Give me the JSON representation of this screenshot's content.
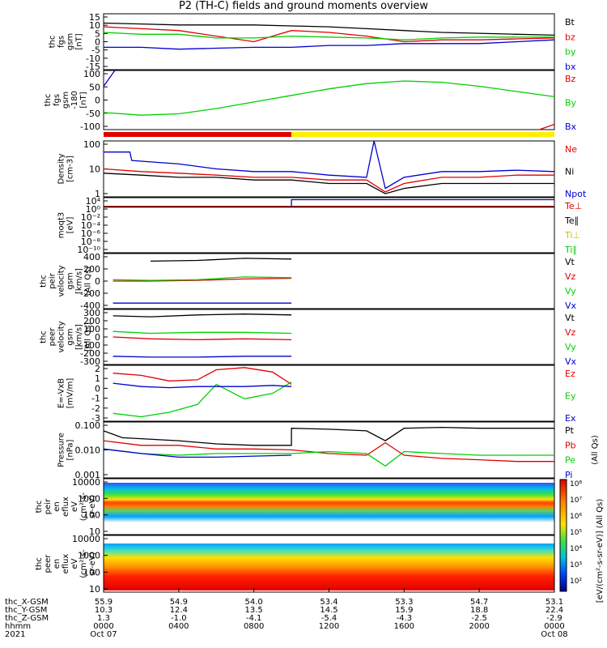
{
  "title": "P2 (TH-C) fields and ground moments overview",
  "colors": {
    "black": "#000000",
    "red": "#e00000",
    "green": "#00d000",
    "blue": "#0000d0",
    "yellow": "#ffee00"
  },
  "chart_data": [
    {
      "id": "fgs",
      "type": "line",
      "ylabel": [
        "thc",
        "fgs",
        "gsm",
        "[nT]"
      ],
      "ylim": [
        -15,
        15
      ],
      "yticks": [
        "15",
        "10",
        "5",
        "0",
        "-5",
        "-10",
        "-15"
      ],
      "legend": [
        {
          "label": "Bt",
          "color": "black"
        },
        {
          "label": "bz",
          "color": "red"
        },
        {
          "label": "by",
          "color": "green"
        },
        {
          "label": "bx",
          "color": "blue"
        }
      ],
      "series": [
        {
          "color": "black",
          "x": [
            0,
            2,
            4,
            6,
            8,
            10,
            12,
            14,
            16,
            18,
            20,
            22,
            24
          ],
          "y": [
            10,
            9.5,
            9,
            9,
            9,
            8.5,
            8,
            7,
            6,
            5,
            4.5,
            4,
            3.5
          ]
        },
        {
          "color": "red",
          "x": [
            0,
            2,
            4,
            6,
            8,
            10,
            12,
            14,
            16,
            18,
            20,
            22,
            24
          ],
          "y": [
            8,
            7,
            6,
            3,
            0,
            6,
            5,
            3,
            0,
            1,
            1,
            1.5,
            2
          ]
        },
        {
          "color": "green",
          "x": [
            0,
            2,
            4,
            6,
            8,
            10,
            12,
            14,
            16,
            18,
            20,
            22,
            24
          ],
          "y": [
            5,
            4,
            4,
            2,
            2,
            3,
            2.5,
            2,
            1,
            2,
            2.5,
            2.5,
            2.5
          ]
        },
        {
          "color": "blue",
          "x": [
            0,
            2,
            4,
            6,
            8,
            10,
            12,
            14,
            16,
            18,
            20,
            22,
            24
          ],
          "y": [
            -3,
            -3,
            -4,
            -3.5,
            -3,
            -3,
            -2,
            -2,
            -1,
            -1,
            -1,
            0,
            1
          ]
        }
      ]
    },
    {
      "id": "fgs_n",
      "type": "line",
      "ylabel": [
        "thc",
        "fgs",
        "gsm",
        "-180",
        "[nT]"
      ],
      "ylim": [
        -125,
        100
      ],
      "yticks": [
        "100",
        "50",
        "0",
        "-50",
        "-100"
      ],
      "legend": [
        {
          "label": "Bz",
          "color": "red"
        },
        {
          "label": "By",
          "color": "green"
        },
        {
          "label": "Bx",
          "color": "blue"
        }
      ],
      "series": [
        {
          "color": "green",
          "x": [
            0,
            2,
            4,
            6,
            8,
            10,
            12,
            14,
            16,
            18,
            20,
            22,
            24
          ],
          "y": [
            -60,
            -70,
            -65,
            -45,
            -20,
            5,
            30,
            50,
            60,
            55,
            40,
            20,
            0
          ]
        },
        {
          "color": "blue",
          "x": [
            0,
            0.6
          ],
          "y": [
            40,
            100
          ]
        },
        {
          "color": "red",
          "x": [
            23.2,
            24
          ],
          "y": [
            -125,
            -105
          ]
        }
      ]
    },
    {
      "id": "density",
      "type": "line",
      "scale": "log",
      "ylabel": [
        "Density",
        "[cm-3]"
      ],
      "ylim": [
        1,
        100
      ],
      "yticks": [
        "100",
        "10",
        "1"
      ],
      "legend": [
        {
          "label": "Ne",
          "color": "red"
        },
        {
          "label": "Ni",
          "color": "black"
        },
        {
          "label": "Npot",
          "color": "blue"
        }
      ],
      "series": [
        {
          "color": "blue",
          "x": [
            0,
            1.4,
            1.5,
            4,
            6,
            8,
            10,
            12,
            14,
            14.4,
            15,
            16,
            18,
            20,
            22,
            24
          ],
          "y": [
            40,
            40,
            20,
            15,
            10,
            8,
            8,
            6,
            5,
            100,
            2,
            5,
            8,
            8,
            9,
            8
          ]
        },
        {
          "color": "red",
          "x": [
            0,
            2,
            4,
            6,
            8,
            10,
            12,
            14,
            15,
            16,
            18,
            20,
            22,
            24
          ],
          "y": [
            10,
            8,
            7,
            6,
            5,
            5,
            4,
            4,
            1.5,
            3,
            5,
            5,
            6,
            6
          ]
        },
        {
          "color": "black",
          "x": [
            0,
            2,
            4,
            6,
            8,
            10,
            12,
            14,
            15,
            16,
            18,
            20,
            22,
            24
          ],
          "y": [
            7,
            6,
            5,
            5,
            4,
            4,
            3,
            3,
            1.3,
            2,
            3,
            3,
            3,
            3
          ]
        }
      ]
    },
    {
      "id": "moqt3",
      "type": "line",
      "scale": "log",
      "ylabel": [
        "moqt3",
        "[eV]"
      ],
      "ylim": [
        1e-10,
        10000
      ],
      "yticks": [
        "10⁴",
        "10⁰",
        "10⁻²",
        "10⁻⁴",
        "10⁻⁶",
        "10⁻⁸",
        "10⁻¹⁰"
      ],
      "legend": [
        {
          "label": "Te⊥",
          "color": "red"
        },
        {
          "label": "Te∥",
          "color": "black"
        },
        {
          "label": "Ti⊥",
          "color": "yellow"
        },
        {
          "label": "Ti∥",
          "color": "green"
        }
      ],
      "series": [
        {
          "color": "blue",
          "x": [
            0,
            10,
            10,
            24
          ],
          "y": [
            50,
            50,
            3000,
            3000
          ]
        },
        {
          "color": "red",
          "x": [
            0,
            24
          ],
          "y": [
            60,
            60
          ]
        },
        {
          "color": "black",
          "x": [
            0,
            24
          ],
          "y": [
            40,
            40
          ]
        }
      ]
    },
    {
      "id": "peir_v",
      "type": "line",
      "ylabel": [
        "thc",
        "peir",
        "velocity",
        "gsm",
        "[km/s]",
        "(All Qs)"
      ],
      "ylim": [
        -400,
        400
      ],
      "yticks": [
        "400",
        "200",
        "0",
        "-200",
        "-400"
      ],
      "legend": [
        {
          "label": "Vt",
          "color": "black"
        },
        {
          "label": "Vz",
          "color": "red"
        },
        {
          "label": "Vy",
          "color": "green"
        },
        {
          "label": "Vx",
          "color": "blue"
        }
      ],
      "series": [
        {
          "color": "black",
          "x": [
            2.5,
            5,
            7.5,
            10
          ],
          "y": [
            290,
            300,
            330,
            320
          ]
        },
        {
          "color": "red",
          "x": [
            0.5,
            2.5,
            5,
            7.5,
            10
          ],
          "y": [
            0,
            0,
            10,
            30,
            40
          ]
        },
        {
          "color": "green",
          "x": [
            0.5,
            2.5,
            5,
            7.5,
            10
          ],
          "y": [
            20,
            10,
            20,
            60,
            50
          ]
        },
        {
          "color": "blue",
          "x": [
            0.5,
            2.5,
            5,
            7.5,
            10
          ],
          "y": [
            -320,
            -320,
            -320,
            -320,
            -320
          ]
        }
      ]
    },
    {
      "id": "peer_v",
      "type": "line",
      "ylabel": [
        "thc",
        "peer",
        "velocity",
        "gsm",
        "[km/s]",
        "(All Qs)"
      ],
      "ylim": [
        -300,
        300
      ],
      "yticks": [
        "300",
        "200",
        "100",
        "0",
        "-100",
        "-200",
        "-300"
      ],
      "legend": [
        {
          "label": "Vt",
          "color": "black"
        },
        {
          "label": "Vz",
          "color": "red"
        },
        {
          "label": "Vy",
          "color": "green"
        },
        {
          "label": "Vx",
          "color": "blue"
        }
      ],
      "series": [
        {
          "color": "black",
          "x": [
            0.5,
            2.5,
            5,
            7.5,
            10
          ],
          "y": [
            230,
            220,
            240,
            250,
            240
          ]
        },
        {
          "color": "red",
          "x": [
            0.5,
            2.5,
            5,
            7.5,
            10
          ],
          "y": [
            0,
            -20,
            -30,
            -20,
            -30
          ]
        },
        {
          "color": "green",
          "x": [
            0.5,
            2.5,
            5,
            7.5,
            10
          ],
          "y": [
            60,
            40,
            50,
            50,
            40
          ]
        },
        {
          "color": "blue",
          "x": [
            0.5,
            2.5,
            5,
            7.5,
            10
          ],
          "y": [
            -210,
            -220,
            -220,
            -210,
            -210
          ]
        }
      ]
    },
    {
      "id": "efield",
      "type": "line",
      "ylabel": [
        "E=-VxB",
        "[mV/m]"
      ],
      "ylim": [
        -3,
        2
      ],
      "yticks": [
        "2",
        "1",
        "0",
        "-1",
        "-2",
        "-3"
      ],
      "legend": [
        {
          "label": "Ez",
          "color": "red"
        },
        {
          "label": "Ey",
          "color": "green"
        },
        {
          "label": "Ex",
          "color": "blue"
        }
      ],
      "series": [
        {
          "color": "red",
          "x": [
            0.5,
            2,
            3.5,
            5,
            6,
            7.5,
            9,
            10
          ],
          "y": [
            1.3,
            1.1,
            0.6,
            0.7,
            1.6,
            1.8,
            1.4,
            0.3
          ]
        },
        {
          "color": "green",
          "x": [
            0.5,
            2,
            3.5,
            5,
            6,
            7.5,
            9,
            10
          ],
          "y": [
            -2.3,
            -2.6,
            -2.2,
            -1.5,
            0.3,
            -1,
            -0.5,
            0.5
          ]
        },
        {
          "color": "blue",
          "x": [
            0.5,
            2,
            3.5,
            5,
            6,
            7.5,
            9,
            10
          ],
          "y": [
            0.4,
            0.1,
            0,
            0.1,
            0.1,
            0.1,
            0.2,
            0.1
          ]
        }
      ]
    },
    {
      "id": "pressure",
      "type": "line",
      "scale": "log",
      "ylabel": [
        "Pressure",
        "[nPa]"
      ],
      "ylim": [
        0.0008,
        0.4
      ],
      "yticks": [
        "0.100",
        "0.010",
        "0.001"
      ],
      "legend": [
        {
          "label": "Pt",
          "color": "black"
        },
        {
          "label": "Pb",
          "color": "red"
        },
        {
          "label": "Pe",
          "color": "green"
        },
        {
          "label": "Pi",
          "color": "blue"
        }
      ],
      "extra_legend": "(All Qs)",
      "series": [
        {
          "color": "black",
          "x": [
            0,
            1,
            4,
            6,
            8,
            10,
            10,
            12,
            14,
            15,
            16,
            18,
            20,
            22,
            24
          ],
          "y": [
            0.15,
            0.07,
            0.05,
            0.035,
            0.03,
            0.03,
            0.2,
            0.18,
            0.15,
            0.05,
            0.2,
            0.22,
            0.2,
            0.2,
            0.2
          ]
        },
        {
          "color": "red",
          "x": [
            0,
            2,
            4,
            6,
            8,
            10,
            12,
            14,
            15,
            16,
            18,
            20,
            22,
            24
          ],
          "y": [
            0.05,
            0.03,
            0.03,
            0.02,
            0.02,
            0.018,
            0.012,
            0.01,
            0.04,
            0.01,
            0.007,
            0.006,
            0.005,
            0.005
          ]
        },
        {
          "color": "green",
          "x": [
            0,
            2,
            4,
            6,
            8,
            10,
            12,
            14,
            15,
            16,
            18,
            20,
            22,
            24
          ],
          "y": [
            0.02,
            0.012,
            0.01,
            0.012,
            0.012,
            0.012,
            0.015,
            0.012,
            0.003,
            0.015,
            0.012,
            0.01,
            0.01,
            0.01
          ]
        },
        {
          "color": "blue",
          "x": [
            0,
            2,
            4,
            6,
            8,
            10
          ],
          "y": [
            0.02,
            0.012,
            0.008,
            0.008,
            0.009,
            0.01
          ]
        }
      ]
    },
    {
      "id": "peir_en",
      "type": "heatmap",
      "ylabel": [
        "thc",
        "peir",
        "en",
        "eflux",
        "eV",
        "(cm²-s-",
        "sr-eV)"
      ],
      "ylim": [
        5,
        20000
      ],
      "yticks": [
        "10000",
        "1000",
        "100",
        "10"
      ]
    },
    {
      "id": "peer_en",
      "type": "heatmap",
      "ylabel": [
        "thc",
        "peer",
        "en",
        "eflux",
        "eV",
        "(cm²-s-",
        "sr-eV)"
      ],
      "ylim": [
        5,
        20000
      ],
      "yticks": [
        "10000",
        "1000",
        "100",
        "10"
      ]
    }
  ],
  "colorbar": {
    "ticks": [
      "10⁸",
      "10⁷",
      "10⁶",
      "10⁵",
      "10⁴",
      "10³",
      "10²"
    ],
    "label": "[eV/(cm²-s-sr-eV)] (All Qs)"
  },
  "xaxis": {
    "range_hours": [
      0,
      24
    ],
    "rows": [
      {
        "label": "thc_X-GSM",
        "values": [
          "55.9",
          "54.9",
          "54.0",
          "53.4",
          "53.3",
          "54.7",
          "53.1"
        ]
      },
      {
        "label": "thc_Y-GSM",
        "values": [
          "10.3",
          "12.4",
          "13.5",
          "14.5",
          "15.9",
          "18.8",
          "22.4"
        ]
      },
      {
        "label": "thc_Z-GSM",
        "values": [
          "1.3",
          "-1.0",
          "-4.1",
          "-5.4",
          "-4.3",
          "-2.5",
          "-2.9"
        ]
      },
      {
        "label": "hhmm",
        "values": [
          "0000",
          "0400",
          "0800",
          "1200",
          "1600",
          "2000",
          "0000"
        ]
      },
      {
        "label": "2021",
        "values": [
          "Oct 07",
          "",
          "",
          "",
          "",
          "",
          "Oct 08"
        ]
      }
    ]
  }
}
